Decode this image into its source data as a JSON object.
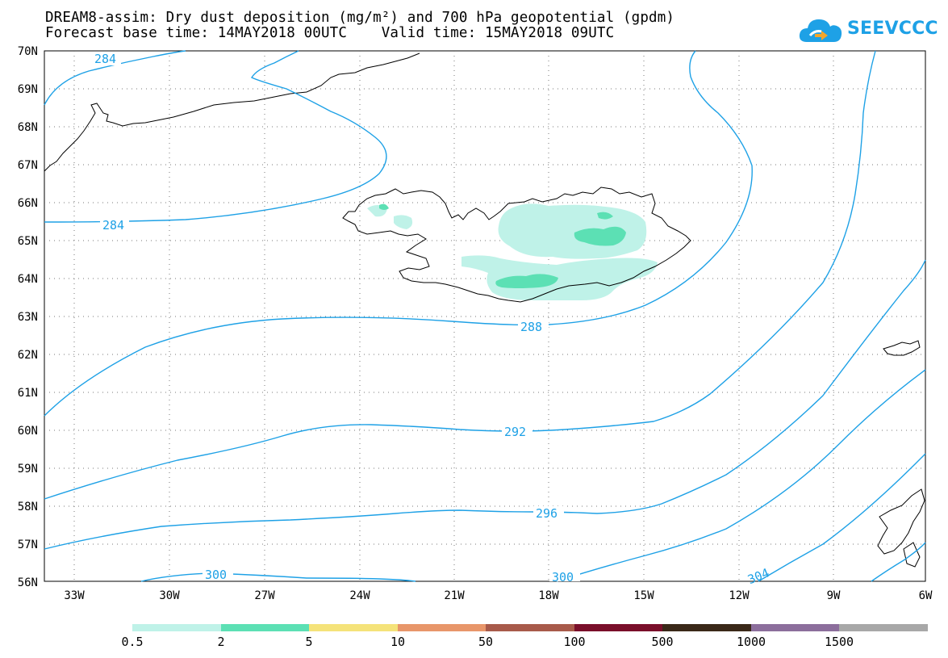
{
  "title": {
    "line1": "DREAM8-assim: Dry dust deposition (mg/m²) and 700 hPa geopotential (gpdm)",
    "line2": "Forecast base time: 14MAY2018 00UTC    Valid time: 15MAY2018 09UTC"
  },
  "logo": {
    "text": "SEEVCCC",
    "icon": "cloud-icon"
  },
  "axes": {
    "lat_labels": [
      "70N",
      "69N",
      "68N",
      "67N",
      "66N",
      "65N",
      "64N",
      "63N",
      "62N",
      "61N",
      "60N",
      "59N",
      "58N",
      "57N",
      "56N"
    ],
    "lon_labels": [
      "33W",
      "30W",
      "27W",
      "24W",
      "21W",
      "18W",
      "15W",
      "12W",
      "9W",
      "6W"
    ],
    "lat_range": [
      56,
      70
    ],
    "lon_range": [
      -34.3,
      -6
    ]
  },
  "contours": {
    "color": "#1ea1e6",
    "labels": [
      "284",
      "284",
      "288",
      "292",
      "296",
      "300",
      "300",
      "304"
    ]
  },
  "colorbar": {
    "colors": [
      "#bff2e8",
      "#5ce0b4",
      "#f5e37a",
      "#e8966a",
      "#a85a4a",
      "#7a0f2a",
      "#3a2818",
      "#8c6e9c",
      "#a8a8a8"
    ],
    "labels": [
      "0.5",
      "2",
      "5",
      "10",
      "50",
      "100",
      "500",
      "1000",
      "1500"
    ]
  }
}
